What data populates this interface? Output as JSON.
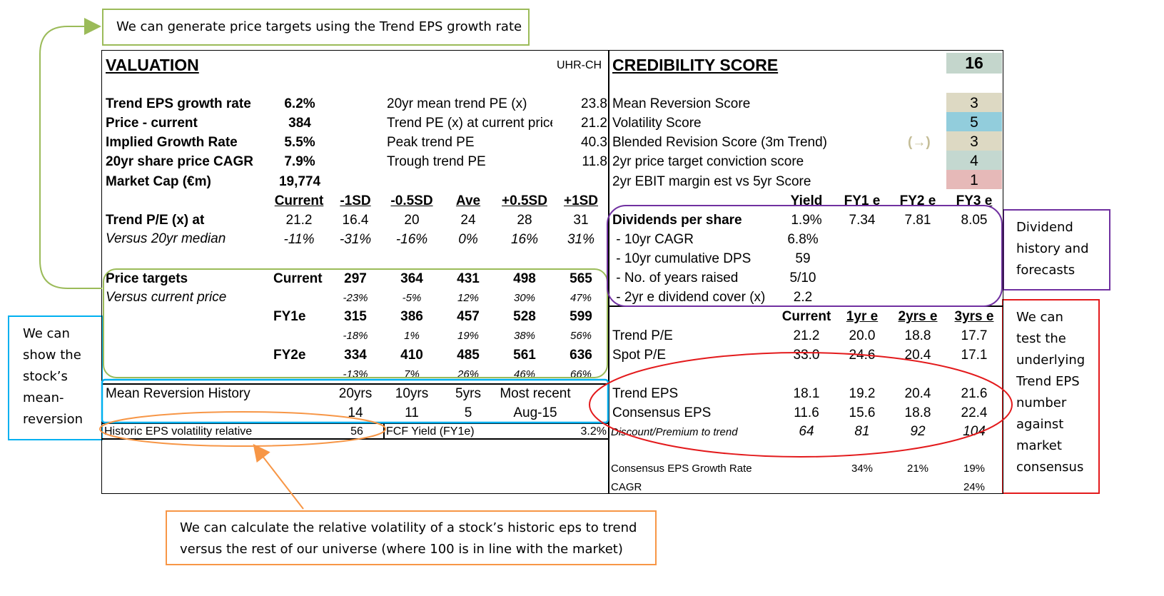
{
  "callouts": {
    "top": "We can generate price targets using the Trend EPS growth rate",
    "left": [
      "We can",
      "show the",
      "stock’s",
      "mean-",
      "reversion"
    ],
    "dividend": [
      "Dividend",
      "history and",
      "forecasts"
    ],
    "right": [
      "We can",
      "test the",
      "underlying",
      "Trend EPS",
      "number",
      "against",
      "market",
      "consensus"
    ],
    "bottom": [
      "We can calculate the relative volatility of a stock’s historic eps to trend",
      "versus the rest of our universe (where 100 is in line with the market)"
    ]
  },
  "valuation": {
    "title": "VALUATION",
    "ticker": "UHR-CH",
    "metrics": [
      {
        "label": "Trend EPS growth rate",
        "value": "6.2%"
      },
      {
        "label": "Price - current",
        "value": "384"
      },
      {
        "label": "Implied Growth Rate",
        "value": "5.5%"
      },
      {
        "label": "20yr share price CAGR",
        "value": "7.9%"
      },
      {
        "label": "Market Cap (€m)",
        "value": "19,774"
      }
    ],
    "pe_stats": [
      {
        "label": "20yr mean trend PE (x)",
        "value": "23.8"
      },
      {
        "label": "Trend PE (x) at current price",
        "value": "21.2"
      },
      {
        "label": "Peak trend PE",
        "value": "40.3"
      },
      {
        "label": "Trough trend PE",
        "value": "11.8"
      }
    ],
    "sd_headers": [
      "Current",
      "-1SD",
      "-0.5SD",
      "Ave",
      "+0.5SD",
      "+1SD"
    ],
    "trend_pe": {
      "label": "Trend P/E (x) at",
      "values": [
        "21.2",
        "16.4",
        "20",
        "24",
        "28",
        "31"
      ]
    },
    "vs_median": {
      "label": "Versus 20yr median",
      "values": [
        "-11%",
        "-31%",
        "-16%",
        "0%",
        "16%",
        "31%"
      ]
    },
    "price_targets": {
      "label": "Price targets",
      "sublabel": "Versus current price",
      "rows": [
        {
          "period": "Current",
          "values": [
            "297",
            "364",
            "431",
            "498",
            "565"
          ],
          "pct": [
            "-23%",
            "-5%",
            "12%",
            "30%",
            "47%"
          ]
        },
        {
          "period": "FY1e",
          "values": [
            "315",
            "386",
            "457",
            "528",
            "599"
          ],
          "pct": [
            "-18%",
            "1%",
            "19%",
            "38%",
            "56%"
          ]
        },
        {
          "period": "FY2e",
          "values": [
            "334",
            "410",
            "485",
            "561",
            "636"
          ],
          "pct": [
            "-13%",
            "7%",
            "26%",
            "46%",
            "66%"
          ]
        }
      ]
    },
    "mean_reversion": {
      "label": "Mean Reversion History",
      "headers": [
        "20yrs",
        "10yrs",
        "5yrs",
        "Most recent"
      ],
      "values": [
        "14",
        "11",
        "5",
        "Aug-15"
      ]
    },
    "eps_volatility": {
      "label": "Historic EPS volatility relative",
      "value": "56"
    },
    "fcf_yield": {
      "label": "FCF Yield (FY1e)",
      "value": "3.2%"
    }
  },
  "credibility": {
    "title": "CREDIBILITY SCORE",
    "total": "16",
    "scores": [
      {
        "label": "Mean Reversion Score",
        "value": "3",
        "color": "#ddd9c3"
      },
      {
        "label": "Volatility Score",
        "value": "5",
        "color": "#92cddc"
      },
      {
        "label": "Blended Revision Score (3m Trend)",
        "value": "3",
        "color": "#ddd9c3",
        "trend": "(→)"
      },
      {
        "label": "2yr price target conviction score",
        "value": "4",
        "color": "#c4d8d0"
      },
      {
        "label": "2yr EBIT margin est vs 5yr Score",
        "value": "1",
        "color": "#e6b9b8"
      }
    ],
    "total_color": "#c4d6cc"
  },
  "dividends": {
    "headers": [
      "Yield",
      "FY1 e",
      "FY2 e",
      "FY3 e"
    ],
    "dps": {
      "label": "Dividends per share",
      "values": [
        "1.9%",
        "7.34",
        "7.81",
        "8.05"
      ]
    },
    "rows": [
      {
        "label": " - 10yr CAGR",
        "value": "6.8%"
      },
      {
        "label": " - 10yr cumulative DPS",
        "value": "59"
      },
      {
        "label": " - No. of years raised",
        "value": "5/10"
      },
      {
        "label": " - 2yr e dividend cover (x)",
        "value": "2.2"
      }
    ]
  },
  "forecast": {
    "headers": [
      "Current",
      "1yr e",
      "2yrs e",
      "3yrs e"
    ],
    "trend_pe": {
      "label": "Trend P/E",
      "values": [
        "21.2",
        "20.0",
        "18.8",
        "17.7"
      ]
    },
    "spot_pe": {
      "label": "Spot P/E",
      "values": [
        "33.0",
        "24.6",
        "20.4",
        "17.1"
      ]
    },
    "trend_eps": {
      "label": "Trend EPS",
      "values": [
        "18.1",
        "19.2",
        "20.4",
        "21.6"
      ]
    },
    "consensus_eps": {
      "label": "Consensus EPS",
      "values": [
        "11.6",
        "15.6",
        "18.8",
        "22.4"
      ]
    },
    "discount": {
      "label": "Discount/Premium to trend",
      "values": [
        "64",
        "81",
        "92",
        "104"
      ]
    },
    "growth": {
      "label": "Consensus EPS Growth Rate",
      "values": [
        "34%",
        "21%",
        "19%"
      ]
    },
    "cagr": {
      "label": "CAGR",
      "value": "24%"
    }
  },
  "colors": {
    "green": "#9bbb59",
    "blue": "#00b0f0",
    "purple": "#7030a0",
    "red": "#e31a1c",
    "orange": "#f79646"
  }
}
